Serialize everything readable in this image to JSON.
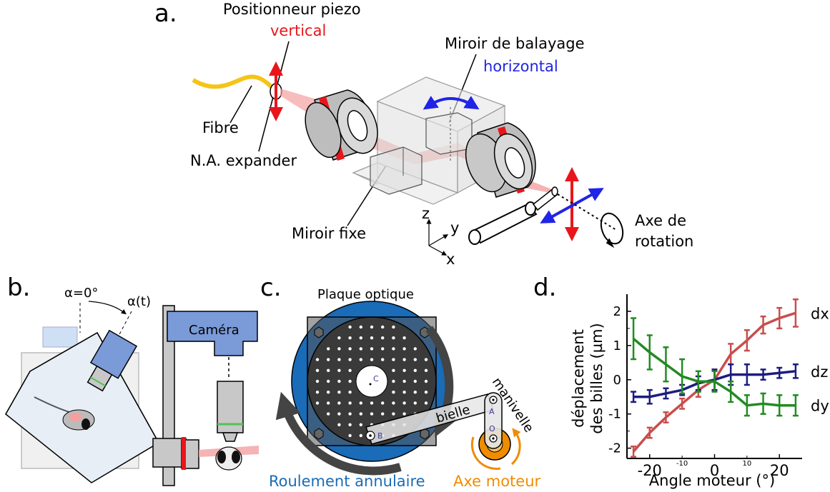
{
  "panel_a": {
    "letter": "a.",
    "piezo_label": "Positionneur piezo",
    "piezo_axis": "vertical",
    "scan_mirror_label": "Miroir de balayage",
    "scan_mirror_axis": "horizontal",
    "fibre_label": "Fibre",
    "expander_label": "N.A. expander",
    "fixed_mirror_label": "Miroir fixe",
    "rotation_axis_line1": "Axe de",
    "rotation_axis_line2": "rotation",
    "axis_z": "z",
    "axis_y": "y",
    "axis_x": "x",
    "colors": {
      "vertical": "#e8161b",
      "horizontal": "#1f24e6",
      "fibre": "#f5c41a",
      "beam": "#f4a0a0"
    }
  },
  "panel_b": {
    "letter": "b.",
    "alpha_zero": "α=0°",
    "alpha_t": "α(t)",
    "camera_label": "Caméra",
    "colors": {
      "camera": "#7a9ad8",
      "platform": "#e8eef6"
    }
  },
  "panel_c": {
    "letter": "c.",
    "plate_label": "Plaque optique",
    "point_c": "C",
    "point_a": "A",
    "point_b": "B",
    "point_o": "O",
    "rod_label": "bielle",
    "crank_label": "manivelle",
    "bearing_label": "Roulement annulaire",
    "motor_label": "Axe moteur",
    "colors": {
      "bearing": "#1a6bb8",
      "motor": "#f08c00",
      "plate": "#3a3a3a"
    }
  },
  "panel_d": {
    "letter": "d."
  },
  "chart_data": {
    "type": "line",
    "xlabel": "Angle moteur (°)",
    "ylabel_line1": "déplacement",
    "ylabel_line2": "des billes (µm)",
    "xlim": [
      -27,
      27
    ],
    "ylim": [
      -2.3,
      2.5
    ],
    "x_major_ticks": [
      -20,
      0,
      20
    ],
    "x_major_labels": [
      "-20",
      "0",
      "20"
    ],
    "x_minor_ticks": [
      -10,
      10
    ],
    "x_minor_labels": [
      "-10",
      "10"
    ],
    "y_major_ticks": [
      -2,
      -1,
      0,
      1,
      2
    ],
    "y_major_labels": [
      "-2",
      "-1",
      "0",
      "1",
      "2"
    ],
    "y_minor_ticks": [
      -1.5,
      1.5
    ],
    "x": [
      -25,
      -20,
      -15,
      -10,
      -5,
      0,
      5,
      10,
      15,
      20,
      25
    ],
    "series": [
      {
        "name": "dx",
        "color": "#c94d4d",
        "values": [
          -2.1,
          -1.55,
          -1.1,
          -0.7,
          -0.3,
          0.0,
          0.75,
          1.15,
          1.6,
          1.8,
          1.95
        ],
        "errors": [
          0.15,
          0.15,
          0.15,
          0.15,
          0.2,
          0.3,
          0.3,
          0.3,
          0.25,
          0.3,
          0.4
        ]
      },
      {
        "name": "dz",
        "color": "#1c1c80",
        "values": [
          -0.5,
          -0.5,
          -0.4,
          -0.3,
          -0.1,
          0.0,
          0.15,
          0.15,
          0.15,
          0.2,
          0.25
        ],
        "errors": [
          0.15,
          0.2,
          0.15,
          0.15,
          0.2,
          0.3,
          0.3,
          0.3,
          0.15,
          0.15,
          0.2
        ]
      },
      {
        "name": "dy",
        "color": "#228b22",
        "values": [
          1.2,
          0.8,
          0.45,
          0.1,
          -0.05,
          -0.05,
          -0.35,
          -0.75,
          -0.7,
          -0.75,
          -0.75
        ],
        "errors": [
          0.6,
          0.5,
          0.5,
          0.5,
          0.3,
          0.3,
          0.3,
          0.3,
          0.3,
          0.3,
          0.3
        ]
      }
    ]
  }
}
